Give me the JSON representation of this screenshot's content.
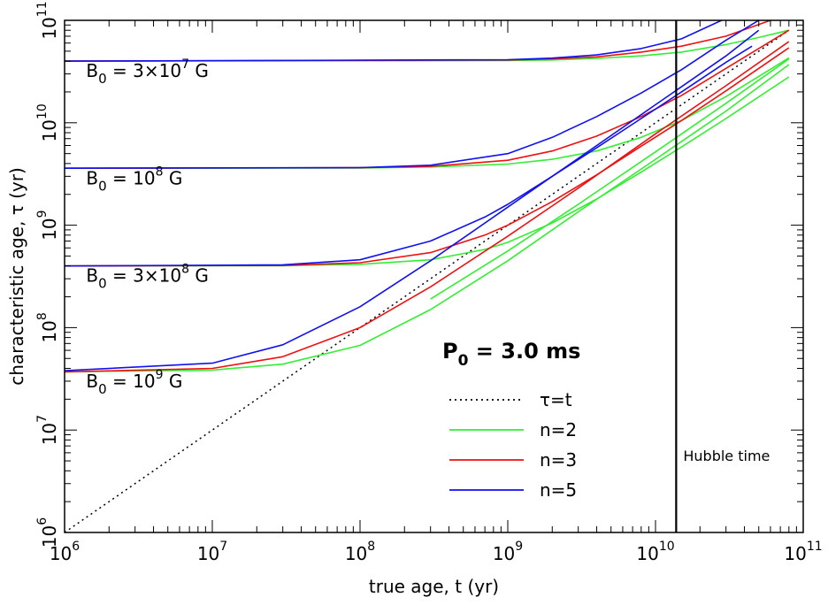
{
  "chart_data": {
    "type": "line",
    "xscale": "log",
    "yscale": "log",
    "xlim": [
      1000000,
      100000000000
    ],
    "ylim": [
      1000000,
      100000000000
    ],
    "xlabel": "true age, t  (yr)",
    "ylabel": "characteristic age, τ  (yr)",
    "x_tick_labels": [
      {
        "value": 1000000,
        "base": "10",
        "exp": "6"
      },
      {
        "value": 10000000,
        "base": "10",
        "exp": "7"
      },
      {
        "value": 100000000,
        "base": "10",
        "exp": "8"
      },
      {
        "value": 1000000000,
        "base": "10",
        "exp": "9"
      },
      {
        "value": 10000000000,
        "base": "10",
        "exp": "10"
      },
      {
        "value": 100000000000,
        "base": "10",
        "exp": "11"
      }
    ],
    "y_tick_labels": [
      {
        "value": 1000000,
        "base": "10",
        "exp": "6"
      },
      {
        "value": 10000000,
        "base": "10",
        "exp": "7"
      },
      {
        "value": 100000000,
        "base": "10",
        "exp": "8"
      },
      {
        "value": 1000000000,
        "base": "10",
        "exp": "9"
      },
      {
        "value": 10000000000,
        "base": "10",
        "exp": "10"
      },
      {
        "value": 100000000000,
        "base": "10",
        "exp": "11"
      }
    ],
    "period_label": {
      "main": "P",
      "sub": "0",
      "rest": " = 3.0 ms"
    },
    "field_labels": [
      {
        "name": "B0-3e7",
        "prefix": "B",
        "sub": "0",
        "mid": " = 3×10",
        "sup": "7",
        "suffix": " G",
        "at": [
          1400000,
          28000000000
        ]
      },
      {
        "name": "B0-1e8",
        "prefix": "B",
        "sub": "0",
        "mid": " = 10",
        "sup": "8",
        "suffix": " G",
        "at": [
          1400000,
          2500000000
        ]
      },
      {
        "name": "B0-3e8",
        "prefix": "B",
        "sub": "0",
        "mid": " = 3×10",
        "sup": "8",
        "suffix": " G",
        "at": [
          1400000,
          280000000
        ]
      },
      {
        "name": "B0-1e9",
        "prefix": "B",
        "sub": "0",
        "mid": " = 10",
        "sup": "9",
        "suffix": " G",
        "at": [
          1400000,
          26000000
        ]
      }
    ],
    "annotations": [
      {
        "name": "hubble-time",
        "text": "Hubble time",
        "at": [
          13800000000,
          5000000
        ]
      }
    ],
    "vertical_line": {
      "x": 13800000000,
      "color": "#000000"
    },
    "legend": {
      "placement": "lower-center",
      "entries": [
        {
          "label": "τ=t",
          "color": "#000000",
          "style": "dotted"
        },
        {
          "label": "n=2",
          "color": "#33ee33",
          "style": "solid"
        },
        {
          "label": "n=3",
          "color": "#ee1111",
          "style": "solid"
        },
        {
          "label": "n=5",
          "color": "#1111ee",
          "style": "solid"
        }
      ]
    },
    "reference_line": {
      "label": "τ=t",
      "x": [
        1000000,
        80000000000
      ],
      "y": [
        1000000,
        80000000000
      ]
    },
    "series": [
      {
        "name": "n=2",
        "color": "#33ee33",
        "B0": "3e7",
        "x": [
          1000000,
          1000000000,
          2000000000,
          4000000000,
          8000000000,
          15000000000,
          30000000000,
          50000000000,
          80000000000
        ],
        "y": [
          40000000000,
          40500000000,
          41000000000,
          42500000000,
          45000000000,
          49000000000,
          58000000000,
          68000000000,
          80000000000
        ]
      },
      {
        "name": "n=3",
        "color": "#ee1111",
        "B0": "3e7",
        "x": [
          1000000,
          1000000000,
          2000000000,
          4000000000,
          8000000000,
          15000000000,
          30000000000,
          60000000000
        ],
        "y": [
          40000000000,
          41000000000,
          42000000000,
          44000000000,
          49000000000,
          56000000000,
          70000000000,
          100000000000
        ]
      },
      {
        "name": "n=5",
        "color": "#1111ee",
        "B0": "3e7",
        "x": [
          1000000,
          1000000000,
          2000000000,
          4000000000,
          8000000000,
          15000000000,
          28000000000
        ],
        "y": [
          40000000000,
          41300000000,
          42800000000,
          46000000000,
          53000000000,
          66000000000,
          100000000000
        ]
      },
      {
        "name": "n=2",
        "color": "#33ee33",
        "B0": "1e8",
        "x": [
          1000000,
          100000000,
          300000000,
          1000000000,
          2000000000,
          4000000000,
          8000000000,
          15000000000,
          30000000000,
          80000000000
        ],
        "y": [
          3600000000,
          3620000000,
          3700000000,
          3950000000,
          4400000000,
          5300000000,
          7200000000,
          10500000000,
          18000000000,
          43000000000
        ]
      },
      {
        "name": "n=3",
        "color": "#ee1111",
        "B0": "1e8",
        "x": [
          1000000,
          100000000,
          300000000,
          1000000000,
          2000000000,
          4000000000,
          8000000000,
          15000000000,
          30000000000,
          80000000000
        ],
        "y": [
          3600000000,
          3640000000,
          3750000000,
          4300000000,
          5300000000,
          7400000000,
          11500000000,
          18500000000,
          34000000000,
          80000000000
        ]
      },
      {
        "name": "n=5",
        "color": "#1111ee",
        "B0": "1e8",
        "x": [
          1000000,
          100000000,
          300000000,
          1000000000,
          2000000000,
          4000000000,
          8000000000,
          15000000000,
          30000000000,
          50000000000
        ],
        "y": [
          3600000000,
          3650000000,
          3850000000,
          5000000000,
          7200000000,
          11500000000,
          19500000000,
          33000000000,
          64000000000,
          100000000000
        ]
      },
      {
        "name": "n=2",
        "color": "#33ee33",
        "B0": "3e8",
        "x": [
          1000000,
          30000000,
          100000000,
          300000000,
          700000000,
          1000000000,
          2000000000,
          4000000000,
          8000000000,
          15000000000,
          30000000000,
          80000000000
        ],
        "y": [
          400000000,
          402000000,
          415000000,
          460000000,
          580000000,
          680000000,
          1050000000,
          1800000000,
          3300000000,
          5800000000,
          11000000000,
          28000000000
        ]
      },
      {
        "name": "n=3",
        "color": "#ee1111",
        "B0": "3e8",
        "x": [
          1000000,
          30000000,
          100000000,
          300000000,
          700000000,
          1000000000,
          2000000000,
          4000000000,
          8000000000,
          15000000000,
          30000000000,
          80000000000
        ],
        "y": [
          400000000,
          405000000,
          430000000,
          540000000,
          800000000,
          1000000000,
          1700000000,
          3100000000,
          5900000000,
          10500000000,
          20500000000,
          54000000000
        ]
      },
      {
        "name": "n=5",
        "color": "#1111ee",
        "B0": "3e8",
        "x": [
          1000000,
          30000000,
          100000000,
          300000000,
          700000000,
          1000000000,
          2000000000,
          4000000000,
          8000000000,
          15000000000,
          30000000000,
          45000000000
        ],
        "y": [
          400000000,
          410000000,
          460000000,
          700000000,
          1200000000,
          1600000000,
          3000000000,
          5700000000,
          11000000000,
          20000000000,
          39000000000,
          56000000000
        ]
      },
      {
        "name": "n=2",
        "color": "#33ee33",
        "B0": "1e9",
        "x": [
          1000000,
          10000000,
          30000000,
          100000000,
          300000000,
          1000000000,
          3000000000,
          10000000000,
          30000000000,
          80000000000
        ],
        "y": [
          37000000,
          38500000,
          44000000,
          67000000,
          150000000,
          450000000,
          1350000000,
          4400000000,
          13000000000,
          37000000000
        ]
      },
      {
        "name": "n=3",
        "color": "#ee1111",
        "B0": "1e9",
        "x": [
          1000000,
          10000000,
          30000000,
          100000000,
          300000000,
          1000000000,
          3000000000,
          10000000000,
          30000000000,
          80000000000
        ],
        "y": [
          37000000,
          40000000,
          52000000,
          100000000,
          250000000,
          780000000,
          2300000000,
          7800000000,
          23000000000,
          62000000000
        ]
      },
      {
        "name": "n=5",
        "color": "#1111ee",
        "B0": "1e9",
        "x": [
          1000000,
          10000000,
          30000000,
          100000000,
          300000000,
          1000000000,
          3000000000,
          10000000000,
          30000000000,
          50000000000
        ],
        "y": [
          38000000,
          45000000,
          68000000,
          160000000,
          450000000,
          1500000000,
          4500000000,
          15000000000,
          45000000000,
          80000000000
        ]
      },
      {
        "name": "n=2",
        "color": "#33ee33",
        "B0": "1e9-upper",
        "x": [
          300000000,
          1000000000,
          3000000000,
          10000000000,
          30000000000,
          80000000000
        ],
        "y": [
          190000000,
          560000000,
          1600000000,
          5200000000,
          15500000000,
          42000000000
        ]
      }
    ]
  }
}
